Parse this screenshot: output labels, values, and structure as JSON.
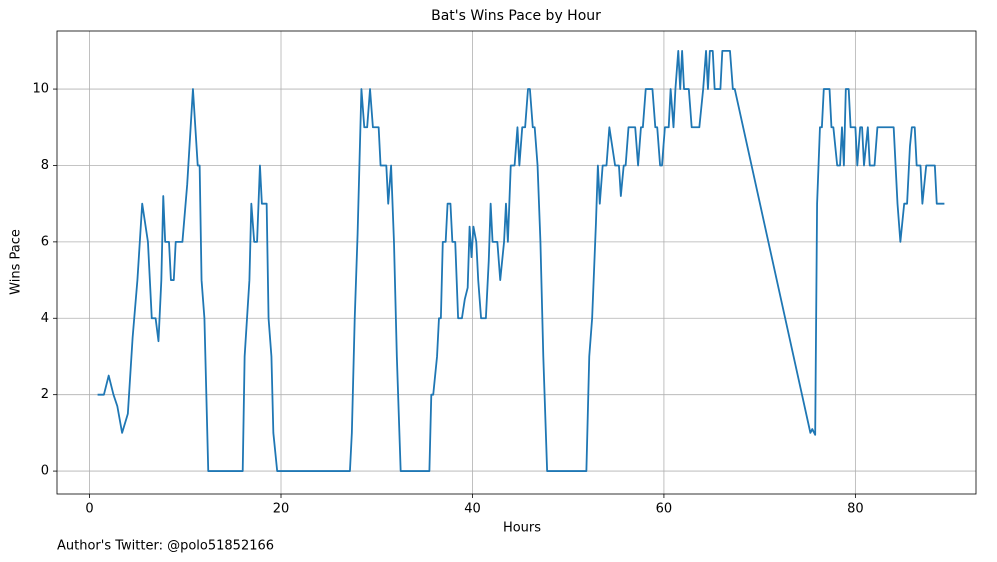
{
  "chart_data": {
    "type": "line",
    "title": "Bat's Wins Pace by Hour",
    "x_label": "Hours",
    "y_label": "Wins Pace",
    "annotation": "Author's Twitter: @polo51852166",
    "x": [
      0.84,
      1.5,
      2.0,
      2.5,
      2.9,
      3.4,
      4.0,
      4.5,
      5.0,
      5.5,
      6.1,
      6.5,
      6.9,
      7.2,
      7.5,
      7.7,
      7.9,
      8.3,
      8.5,
      8.8,
      9.0,
      9.7,
      10.2,
      10.8,
      11.3,
      11.5,
      11.7,
      12.0,
      12.4,
      16.0,
      16.2,
      16.7,
      16.9,
      17.2,
      17.5,
      17.8,
      18.0,
      18.5,
      18.7,
      19.0,
      19.2,
      19.6,
      27.2,
      27.4,
      27.7,
      28.0,
      28.4,
      28.7,
      29.0,
      29.3,
      29.6,
      30.2,
      30.4,
      31.0,
      31.2,
      31.5,
      31.8,
      32.1,
      32.5,
      35.5,
      35.7,
      35.9,
      36.3,
      36.5,
      36.7,
      36.9,
      37.2,
      37.4,
      37.7,
      37.9,
      38.2,
      38.5,
      38.9,
      39.2,
      39.5,
      39.7,
      39.9,
      40.1,
      40.4,
      40.6,
      40.9,
      41.4,
      41.7,
      41.9,
      42.1,
      42.6,
      42.9,
      43.3,
      43.5,
      43.7,
      44.0,
      44.4,
      44.7,
      44.9,
      45.2,
      45.5,
      45.8,
      46.0,
      46.3,
      46.5,
      46.8,
      47.1,
      47.4,
      47.8,
      51.9,
      52.2,
      52.5,
      52.9,
      53.1,
      53.3,
      53.6,
      54.0,
      54.3,
      54.6,
      54.9,
      55.3,
      55.5,
      55.8,
      56.0,
      56.3,
      57.0,
      57.3,
      57.6,
      57.8,
      58.1,
      58.8,
      59.1,
      59.3,
      59.6,
      59.8,
      60.1,
      60.5,
      60.7,
      61.0,
      61.2,
      61.5,
      61.7,
      61.9,
      62.1,
      62.6,
      62.9,
      63.7,
      64.1,
      64.4,
      64.6,
      64.8,
      65.1,
      65.3,
      65.9,
      66.1,
      66.9,
      67.2,
      67.4,
      75.3,
      75.5,
      75.8,
      76.0,
      76.3,
      76.5,
      76.7,
      77.3,
      77.5,
      77.7,
      78.1,
      78.4,
      78.6,
      78.8,
      79.0,
      79.3,
      79.5,
      80.0,
      80.2,
      80.5,
      80.7,
      80.9,
      81.3,
      81.5,
      82.0,
      82.3,
      84.0,
      84.4,
      84.7,
      85.1,
      85.4,
      85.7,
      85.9,
      86.2,
      86.4,
      86.8,
      87.0,
      87.4,
      88.3,
      88.5,
      89.3
    ],
    "series": [
      {
        "color": "#1f77b4",
        "values": [
          2,
          2,
          2.5,
          2,
          1.7,
          1,
          1.5,
          3.5,
          5,
          7,
          6,
          4,
          4,
          3.4,
          5,
          7.2,
          6,
          6,
          5,
          5,
          6,
          6,
          7.5,
          10,
          8,
          8,
          5,
          4,
          0,
          0,
          3,
          5,
          7,
          6,
          6,
          8,
          7,
          7,
          4,
          3,
          1,
          0,
          0,
          1,
          4,
          6.2,
          10,
          9,
          9,
          10,
          9,
          9,
          8,
          8,
          7,
          8,
          6,
          3,
          0,
          0,
          2,
          2,
          3,
          4,
          4,
          6,
          6,
          7,
          7,
          6,
          6,
          4,
          4,
          4.5,
          4.8,
          6.4,
          5.6,
          6.4,
          6,
          5,
          4,
          4,
          5.5,
          7,
          6,
          6,
          5,
          6,
          7,
          6,
          8,
          8,
          9,
          8,
          9,
          9,
          10,
          10,
          9,
          9,
          8,
          6,
          3,
          0,
          0,
          3,
          4,
          6.5,
          8,
          7,
          8,
          8,
          9,
          8.5,
          8,
          8,
          7.2,
          8,
          8,
          9,
          9,
          8,
          9,
          9,
          10,
          10,
          9,
          9,
          8,
          8,
          9,
          9,
          10,
          9,
          10,
          11,
          10,
          11,
          10,
          10,
          9,
          9,
          10,
          11,
          10,
          11,
          11,
          10,
          10,
          11,
          11,
          10,
          10,
          1,
          1.1,
          0.95,
          7,
          9,
          9,
          10,
          10,
          9,
          9,
          8,
          8,
          9,
          8,
          10,
          10,
          9,
          9,
          8,
          9,
          9,
          8,
          9,
          8,
          8,
          9,
          9,
          7,
          6,
          7,
          7,
          8.5,
          9,
          9,
          8,
          8,
          7,
          8,
          8,
          7,
          7
        ]
      }
    ],
    "xlim": [
      -3.4,
      92.6
    ],
    "ylim": [
      -0.6,
      11.52
    ],
    "xticks": [
      0,
      20,
      40,
      60,
      80
    ],
    "yticks": [
      0,
      2,
      4,
      6,
      8,
      10
    ],
    "grid": true
  }
}
